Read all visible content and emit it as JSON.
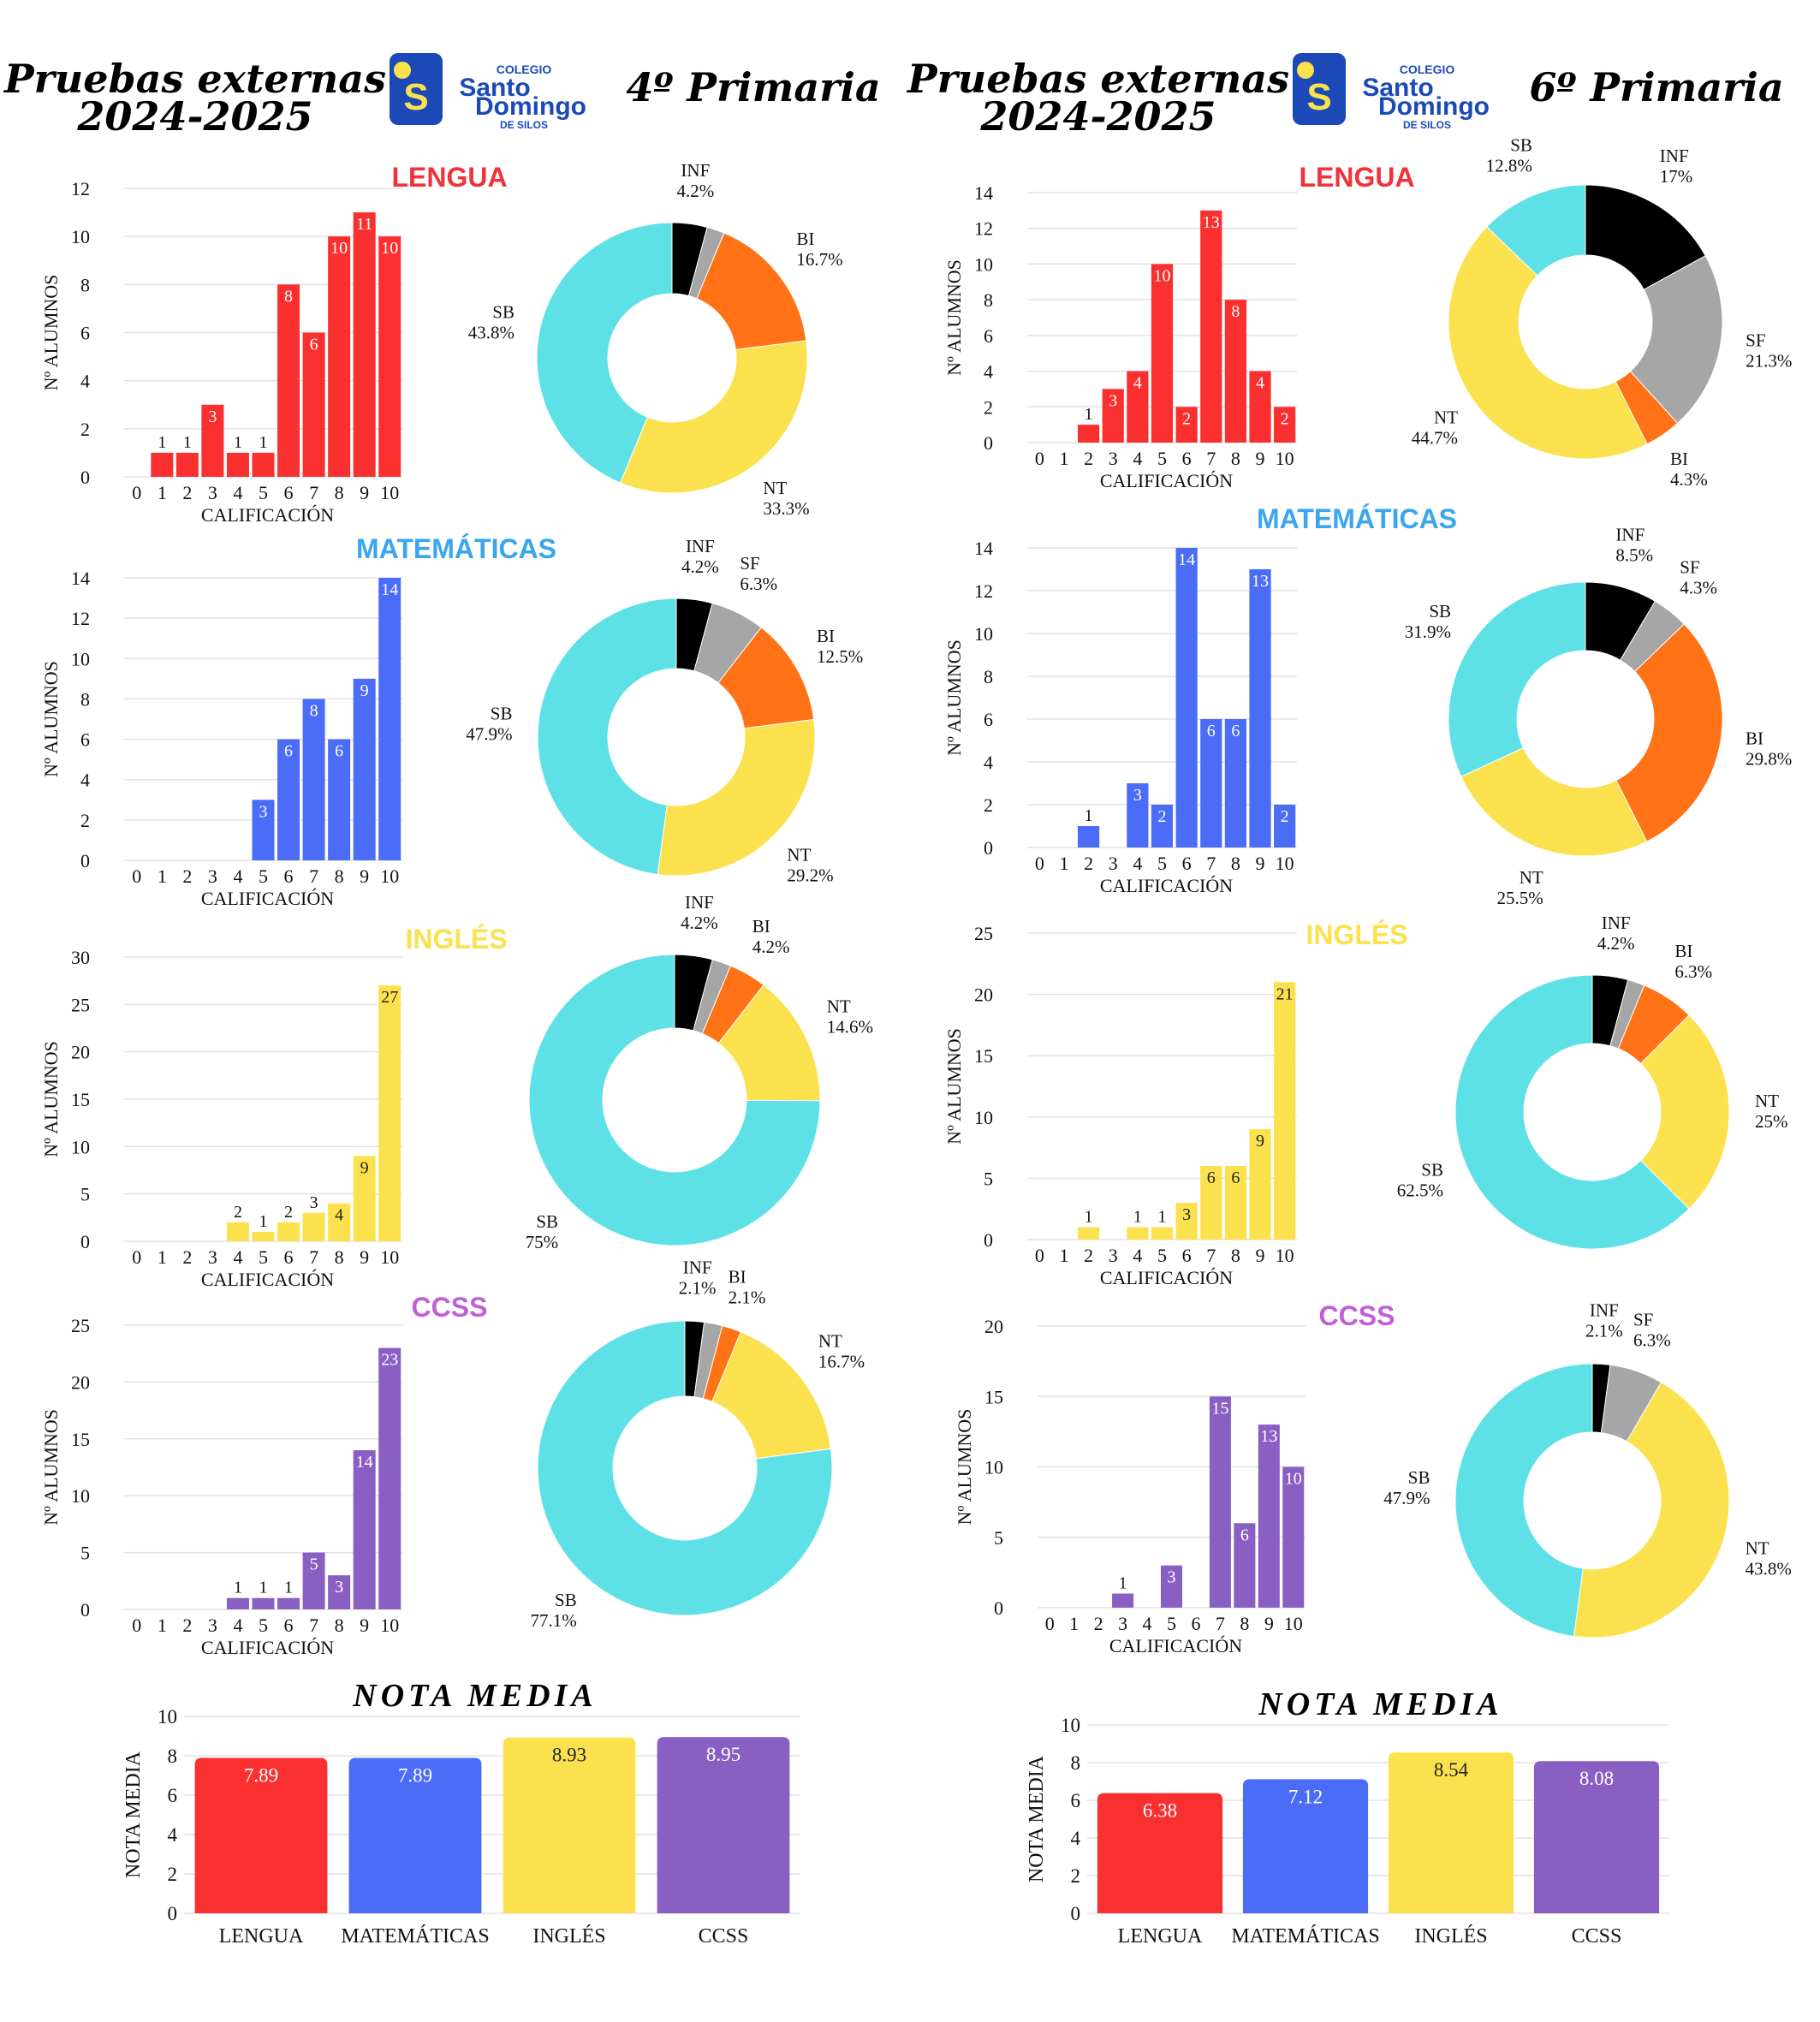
{
  "panels": [
    {
      "header": {
        "title_line1": "Pruebas externas",
        "title_line2": "2024-2025",
        "course": "4º Primaria",
        "logo": {
          "line1": "COLEGIO",
          "line2": "Santo",
          "line3": "Domingo",
          "line4": "DE SILOS"
        }
      },
      "nota_media_title": "NOTA MEDIA"
    },
    {
      "header": {
        "title_line1": "Pruebas externas",
        "title_line2": "2024-2025",
        "course": "6º Primaria",
        "logo": {
          "line1": "COLEGIO",
          "line2": "Santo",
          "line3": "Domingo",
          "line4": "DE SILOS"
        }
      },
      "nota_media_title": "NOTA MEDIA"
    }
  ],
  "colors": {
    "red": "#fa2f2f",
    "blue": "#4a6cf7",
    "yellow": "#fbe14d",
    "purple": "#8a5fc4",
    "lengua_title": "#f0333a",
    "mat_title": "#3aa6ee",
    "ing_title": "#fbe14d",
    "ccss_title": "#c05fd6",
    "INF": "#000000",
    "SF": "#a6a6a6",
    "BI": "#ff7316",
    "NT": "#fbe14d",
    "SB": "#5ee1e6"
  },
  "chart_data": [
    {
      "id": "p4-lengua",
      "type": "bar",
      "panel": 0,
      "row": 0,
      "subject": "LENGUA",
      "title_color": "lengua_title",
      "color": "red",
      "categories": [
        "0",
        "1",
        "2",
        "3",
        "4",
        "5",
        "6",
        "7",
        "8",
        "9",
        "10"
      ],
      "values": [
        0,
        1,
        1,
        3,
        1,
        1,
        8,
        6,
        10,
        11,
        10
      ],
      "ylim": [
        0,
        12
      ],
      "yticks": [
        0,
        2,
        4,
        6,
        8,
        10,
        12
      ],
      "xlabel": "CALIFICACIÓN",
      "ylabel": "Nº ALUMNOS",
      "label_color": "dark_small"
    },
    {
      "id": "p4-lengua-pie",
      "type": "pie",
      "panel": 0,
      "row": 0,
      "slices": [
        {
          "name": "INF",
          "value": 4.2,
          "label": "4.2%",
          "show": true
        },
        {
          "name": "SF",
          "value": 2.1,
          "label": "",
          "show": false
        },
        {
          "name": "BI",
          "value": 16.7,
          "label": "16.7%",
          "show": true
        },
        {
          "name": "NT",
          "value": 33.3,
          "label": "33.3%",
          "show": true
        },
        {
          "name": "SB",
          "value": 43.8,
          "label": "43.8%",
          "show": true
        }
      ]
    },
    {
      "id": "p4-mat",
      "type": "bar",
      "panel": 0,
      "row": 1,
      "subject": "MATEMÁTICAS",
      "title_color": "mat_title",
      "color": "blue",
      "categories": [
        "0",
        "1",
        "2",
        "3",
        "4",
        "5",
        "6",
        "7",
        "8",
        "9",
        "10"
      ],
      "values": [
        0,
        0,
        0,
        0,
        0,
        3,
        6,
        8,
        6,
        9,
        14
      ],
      "ylim": [
        0,
        14
      ],
      "yticks": [
        0,
        2,
        4,
        6,
        8,
        10,
        12,
        14
      ],
      "xlabel": "CALIFICACIÓN",
      "ylabel": "Nº ALUMNOS"
    },
    {
      "id": "p4-mat-pie",
      "type": "pie",
      "panel": 0,
      "row": 1,
      "slices": [
        {
          "name": "INF",
          "value": 4.2,
          "label": "4.2%",
          "show": true
        },
        {
          "name": "SF",
          "value": 6.3,
          "label": "6.3%",
          "show": true
        },
        {
          "name": "BI",
          "value": 12.5,
          "label": "12.5%",
          "show": true
        },
        {
          "name": "NT",
          "value": 29.2,
          "label": "29.2%",
          "show": true
        },
        {
          "name": "SB",
          "value": 47.9,
          "label": "47.9%",
          "show": true
        }
      ]
    },
    {
      "id": "p4-ing",
      "type": "bar",
      "panel": 0,
      "row": 2,
      "subject": "INGLÉS",
      "title_color": "ing_title",
      "color": "yellow",
      "categories": [
        "0",
        "1",
        "2",
        "3",
        "4",
        "5",
        "6",
        "7",
        "8",
        "9",
        "10"
      ],
      "values": [
        0,
        0,
        0,
        0,
        2,
        1,
        2,
        3,
        4,
        9,
        27
      ],
      "ylim": [
        0,
        30
      ],
      "yticks": [
        0,
        5,
        10,
        15,
        20,
        25,
        30
      ],
      "xlabel": "CALIFICACIÓN",
      "ylabel": "Nº ALUMNOS"
    },
    {
      "id": "p4-ing-pie",
      "type": "pie",
      "panel": 0,
      "row": 2,
      "slices": [
        {
          "name": "INF",
          "value": 4.2,
          "label": "4.2%",
          "show": true
        },
        {
          "name": "SF",
          "value": 2.1,
          "label": "",
          "show": false
        },
        {
          "name": "BI",
          "value": 4.2,
          "label": "4.2%",
          "show": true
        },
        {
          "name": "NT",
          "value": 14.6,
          "label": "14.6%",
          "show": true
        },
        {
          "name": "SB",
          "value": 75,
          "label": "75%",
          "show": true
        }
      ]
    },
    {
      "id": "p4-ccss",
      "type": "bar",
      "panel": 0,
      "row": 3,
      "subject": "CCSS",
      "title_color": "ccss_title",
      "color": "purple",
      "categories": [
        "0",
        "1",
        "2",
        "3",
        "4",
        "5",
        "6",
        "7",
        "8",
        "9",
        "10"
      ],
      "values": [
        0,
        0,
        0,
        0,
        1,
        1,
        1,
        5,
        3,
        14,
        23
      ],
      "ylim": [
        0,
        25
      ],
      "yticks": [
        0,
        5,
        10,
        15,
        20,
        25
      ],
      "xlabel": "CALIFICACIÓN",
      "ylabel": "Nº ALUMNOS"
    },
    {
      "id": "p4-ccss-pie",
      "type": "pie",
      "panel": 0,
      "row": 3,
      "slices": [
        {
          "name": "INF",
          "value": 2.1,
          "label": "2.1%",
          "show": true
        },
        {
          "name": "SF",
          "value": 2.0,
          "label": "",
          "show": false
        },
        {
          "name": "BI",
          "value": 2.1,
          "label": "2.1%",
          "show": true
        },
        {
          "name": "NT",
          "value": 16.7,
          "label": "16.7%",
          "show": true
        },
        {
          "name": "SB",
          "value": 77.1,
          "label": "77.1%",
          "show": true
        }
      ]
    },
    {
      "id": "p4-media",
      "type": "bar",
      "panel": 0,
      "row": 4,
      "title": "NOTA MEDIA",
      "categories": [
        "LENGUA",
        "MATEMÁTICAS",
        "INGLÉS",
        "CCSS"
      ],
      "values": [
        7.89,
        7.89,
        8.93,
        8.95
      ],
      "labels": [
        "7.89",
        "7.89",
        "8.93",
        "8.95"
      ],
      "colors": [
        "red",
        "blue",
        "yellow",
        "purple"
      ],
      "ylim": [
        0,
        10
      ],
      "yticks": [
        0,
        2,
        4,
        6,
        8,
        10
      ],
      "ylabel": "NOTA MEDIA"
    },
    {
      "id": "p6-lengua",
      "type": "bar",
      "panel": 1,
      "row": 0,
      "subject": "LENGUA",
      "title_color": "lengua_title",
      "color": "red",
      "categories": [
        "0",
        "1",
        "2",
        "3",
        "4",
        "5",
        "6",
        "7",
        "8",
        "9",
        "10"
      ],
      "values": [
        0,
        0,
        1,
        3,
        4,
        10,
        2,
        13,
        8,
        4,
        2
      ],
      "ylim": [
        0,
        14
      ],
      "yticks": [
        0,
        2,
        4,
        6,
        8,
        10,
        12,
        14
      ],
      "xlabel": "CALIFICACIÓN",
      "ylabel": "Nº ALUMNOS"
    },
    {
      "id": "p6-lengua-pie",
      "type": "pie",
      "panel": 1,
      "row": 0,
      "slices": [
        {
          "name": "INF",
          "value": 17,
          "label": "17%",
          "show": true
        },
        {
          "name": "SF",
          "value": 21.3,
          "label": "21.3%",
          "show": true
        },
        {
          "name": "BI",
          "value": 4.3,
          "label": "4.3%",
          "show": true
        },
        {
          "name": "NT",
          "value": 44.7,
          "label": "44.7%",
          "show": true
        },
        {
          "name": "SB",
          "value": 12.8,
          "label": "12.8%",
          "show": true
        }
      ]
    },
    {
      "id": "p6-mat",
      "type": "bar",
      "panel": 1,
      "row": 1,
      "subject": "MATEMÁTICAS",
      "title_color": "mat_title",
      "color": "blue",
      "categories": [
        "0",
        "1",
        "2",
        "3",
        "4",
        "5",
        "6",
        "7",
        "8",
        "9",
        "10"
      ],
      "values": [
        0,
        0,
        1,
        0,
        3,
        2,
        14,
        6,
        6,
        13,
        2
      ],
      "ylim": [
        0,
        14
      ],
      "yticks": [
        0,
        2,
        4,
        6,
        8,
        10,
        12,
        14
      ],
      "xlabel": "CALIFICACIÓN",
      "ylabel": "Nº ALUMNOS"
    },
    {
      "id": "p6-mat-pie",
      "type": "pie",
      "panel": 1,
      "row": 1,
      "slices": [
        {
          "name": "INF",
          "value": 8.5,
          "label": "8.5%",
          "show": true
        },
        {
          "name": "SF",
          "value": 4.3,
          "label": "4.3%",
          "show": true
        },
        {
          "name": "BI",
          "value": 29.8,
          "label": "29.8%",
          "show": true
        },
        {
          "name": "NT",
          "value": 25.5,
          "label": "25.5%",
          "show": true
        },
        {
          "name": "SB",
          "value": 31.9,
          "label": "31.9%",
          "show": true
        }
      ]
    },
    {
      "id": "p6-ing",
      "type": "bar",
      "panel": 1,
      "row": 2,
      "subject": "INGLÉS",
      "title_color": "ing_title",
      "color": "yellow",
      "categories": [
        "0",
        "1",
        "2",
        "3",
        "4",
        "5",
        "6",
        "7",
        "8",
        "9",
        "10"
      ],
      "values": [
        0,
        0,
        1,
        0,
        1,
        1,
        3,
        6,
        6,
        9,
        21
      ],
      "ylim": [
        0,
        25
      ],
      "yticks": [
        0,
        5,
        10,
        15,
        20,
        25
      ],
      "xlabel": "CALIFICACIÓN",
      "ylabel": "Nº ALUMNOS"
    },
    {
      "id": "p6-ing-pie",
      "type": "pie",
      "panel": 1,
      "row": 2,
      "slices": [
        {
          "name": "INF",
          "value": 4.2,
          "label": "4.2%",
          "show": true
        },
        {
          "name": "SF",
          "value": 2.0,
          "label": "",
          "show": false
        },
        {
          "name": "BI",
          "value": 6.3,
          "label": "6.3%",
          "show": true
        },
        {
          "name": "NT",
          "value": 25,
          "label": "25%",
          "show": true
        },
        {
          "name": "SB",
          "value": 62.5,
          "label": "62.5%",
          "show": true
        }
      ]
    },
    {
      "id": "p6-ccss",
      "type": "bar",
      "panel": 1,
      "row": 3,
      "subject": "CCSS",
      "title_color": "ccss_title",
      "color": "purple",
      "categories": [
        "0",
        "1",
        "2",
        "3",
        "4",
        "5",
        "6",
        "7",
        "8",
        "9",
        "10"
      ],
      "values": [
        0,
        0,
        0,
        1,
        0,
        3,
        0,
        15,
        6,
        13,
        10
      ],
      "ylim": [
        0,
        20
      ],
      "yticks": [
        0,
        5,
        10,
        15,
        20
      ],
      "xlabel": "CALIFICACIÓN",
      "ylabel": "Nº ALUMNOS"
    },
    {
      "id": "p6-ccss-pie",
      "type": "pie",
      "panel": 1,
      "row": 3,
      "slices": [
        {
          "name": "INF",
          "value": 2.1,
          "label": "2.1%",
          "show": true
        },
        {
          "name": "SF",
          "value": 6.3,
          "label": "6.3%",
          "show": true
        },
        {
          "name": "BI",
          "value": 0,
          "label": "",
          "show": false
        },
        {
          "name": "NT",
          "value": 43.8,
          "label": "43.8%",
          "show": true
        },
        {
          "name": "SB",
          "value": 47.9,
          "label": "47.9%",
          "show": true
        }
      ]
    },
    {
      "id": "p6-media",
      "type": "bar",
      "panel": 1,
      "row": 4,
      "title": "NOTA MEDIA",
      "categories": [
        "LENGUA",
        "MATEMÁTICAS",
        "INGLÉS",
        "CCSS"
      ],
      "values": [
        6.38,
        7.12,
        8.54,
        8.08
      ],
      "labels": [
        "6.38",
        "7.12",
        "8.54",
        "8.08"
      ],
      "colors": [
        "red",
        "blue",
        "yellow",
        "purple"
      ],
      "ylim": [
        0,
        10
      ],
      "yticks": [
        0,
        2,
        4,
        6,
        8,
        10
      ],
      "ylabel": "NOTA MEDIA"
    }
  ]
}
